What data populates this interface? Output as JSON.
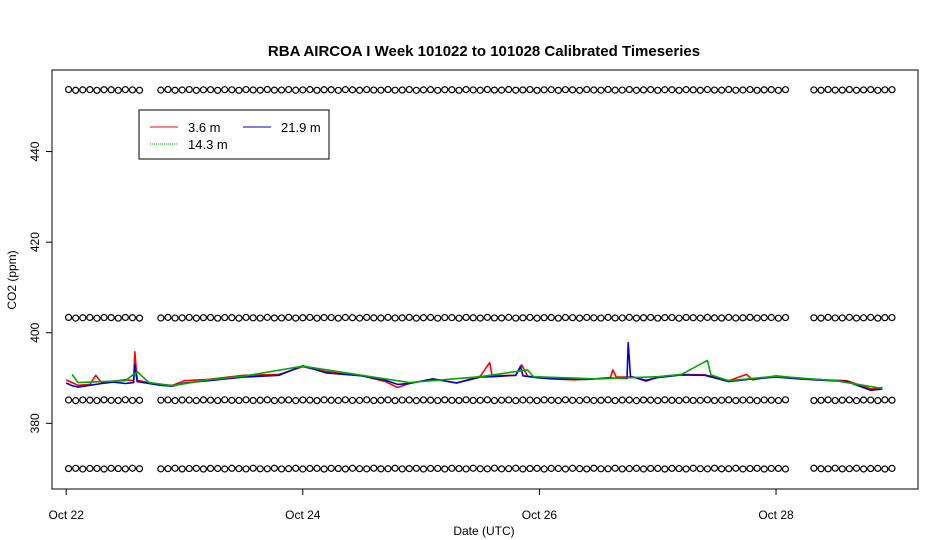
{
  "chart_data": {
    "type": "line",
    "title": "RBA AIRCOA I  Week 101022 to 101028  Calibrated Timeseries",
    "xlabel": "Date (UTC)",
    "ylabel": "CO2 (ppm)",
    "xlim": [
      -0.12,
      7.2
    ],
    "ylim": [
      365.5,
      458
    ],
    "x_ticks": [
      {
        "value": 0,
        "label": "Oct 22"
      },
      {
        "value": 2,
        "label": "Oct 24"
      },
      {
        "value": 4,
        "label": "Oct 26"
      },
      {
        "value": 6,
        "label": "Oct 28"
      }
    ],
    "y_ticks": [
      360,
      380,
      400,
      420,
      440
    ],
    "y_tick_labels": [
      "360",
      "380",
      "400",
      "420",
      "440"
    ],
    "legend": {
      "placement": "top-left",
      "entries": [
        {
          "label": "3.6 m",
          "color": "#ff0000"
        },
        {
          "label": "21.9 m",
          "color": "#0000cc"
        },
        {
          "label": "14.3 m",
          "color": "#00aa00"
        }
      ]
    },
    "series": [
      {
        "name": "3.6 m",
        "color": "#ff0000",
        "points": [
          [
            0.0,
            389.6
          ],
          [
            0.05,
            389.0
          ],
          [
            0.1,
            388.4
          ],
          [
            0.2,
            388.6
          ],
          [
            0.25,
            390.6
          ],
          [
            0.3,
            388.9
          ],
          [
            0.4,
            389.3
          ],
          [
            0.5,
            389.6
          ],
          [
            0.57,
            389.4
          ],
          [
            0.58,
            395.8
          ],
          [
            0.6,
            389.5
          ],
          [
            0.7,
            389.0
          ],
          [
            0.8,
            388.5
          ],
          [
            0.9,
            388.4
          ],
          [
            1.0,
            389.4
          ],
          [
            1.2,
            389.7
          ],
          [
            1.5,
            390.6
          ],
          [
            1.8,
            390.8
          ],
          [
            2.0,
            392.5
          ],
          [
            2.2,
            391.4
          ],
          [
            2.5,
            390.5
          ],
          [
            2.7,
            389.2
          ],
          [
            2.8,
            387.9
          ],
          [
            2.9,
            388.8
          ],
          [
            3.1,
            389.8
          ],
          [
            3.3,
            388.9
          ],
          [
            3.5,
            390.4
          ],
          [
            3.58,
            393.4
          ],
          [
            3.6,
            390.5
          ],
          [
            3.8,
            390.6
          ],
          [
            3.85,
            392.9
          ],
          [
            3.9,
            390.4
          ],
          [
            4.1,
            389.8
          ],
          [
            4.3,
            389.6
          ],
          [
            4.5,
            389.9
          ],
          [
            4.6,
            390.1
          ],
          [
            4.62,
            391.8
          ],
          [
            4.65,
            390.2
          ],
          [
            4.8,
            390.2
          ],
          [
            4.9,
            389.3
          ],
          [
            5.0,
            390.2
          ],
          [
            5.2,
            390.8
          ],
          [
            5.4,
            390.7
          ],
          [
            5.6,
            389.4
          ],
          [
            5.75,
            390.8
          ],
          [
            5.8,
            389.6
          ],
          [
            6.0,
            390.5
          ],
          [
            6.2,
            389.9
          ],
          [
            6.4,
            389.6
          ],
          [
            6.6,
            389.4
          ],
          [
            6.8,
            387.6
          ],
          [
            6.9,
            387.9
          ]
        ]
      },
      {
        "name": "21.9 m",
        "color": "#0000cc",
        "points": [
          [
            0.0,
            388.9
          ],
          [
            0.05,
            388.3
          ],
          [
            0.1,
            388.0
          ],
          [
            0.2,
            388.4
          ],
          [
            0.3,
            388.8
          ],
          [
            0.4,
            389.1
          ],
          [
            0.5,
            388.8
          ],
          [
            0.57,
            389.0
          ],
          [
            0.58,
            392.9
          ],
          [
            0.6,
            389.2
          ],
          [
            0.7,
            388.8
          ],
          [
            0.8,
            388.4
          ],
          [
            0.9,
            388.2
          ],
          [
            1.0,
            388.9
          ],
          [
            1.2,
            389.4
          ],
          [
            1.5,
            390.2
          ],
          [
            1.8,
            390.6
          ],
          [
            2.0,
            392.7
          ],
          [
            2.2,
            391.1
          ],
          [
            2.5,
            390.5
          ],
          [
            2.7,
            389.5
          ],
          [
            2.8,
            388.6
          ],
          [
            2.9,
            388.8
          ],
          [
            3.1,
            389.8
          ],
          [
            3.3,
            388.9
          ],
          [
            3.5,
            390.2
          ],
          [
            3.6,
            390.3
          ],
          [
            3.8,
            390.6
          ],
          [
            3.84,
            392.6
          ],
          [
            3.86,
            390.5
          ],
          [
            4.0,
            390.0
          ],
          [
            4.2,
            389.8
          ],
          [
            4.4,
            389.7
          ],
          [
            4.6,
            390.0
          ],
          [
            4.74,
            389.9
          ],
          [
            4.75,
            397.8
          ],
          [
            4.77,
            390.3
          ],
          [
            4.9,
            389.5
          ],
          [
            5.0,
            390.1
          ],
          [
            5.2,
            390.7
          ],
          [
            5.4,
            390.6
          ],
          [
            5.6,
            389.2
          ],
          [
            5.8,
            389.8
          ],
          [
            6.0,
            390.2
          ],
          [
            6.2,
            389.8
          ],
          [
            6.4,
            389.5
          ],
          [
            6.6,
            389.2
          ],
          [
            6.8,
            387.3
          ],
          [
            6.9,
            387.6
          ]
        ]
      },
      {
        "name": "14.3 m",
        "color": "#00aa00",
        "points": [
          [
            0.05,
            390.8
          ],
          [
            0.1,
            389.0
          ],
          [
            0.5,
            389.4
          ],
          [
            0.6,
            391.4
          ],
          [
            0.7,
            389.0
          ],
          [
            0.9,
            388.3
          ],
          [
            1.2,
            389.6
          ],
          [
            1.5,
            390.4
          ],
          [
            2.0,
            392.6
          ],
          [
            2.5,
            390.6
          ],
          [
            2.9,
            389.0
          ],
          [
            3.5,
            390.3
          ],
          [
            3.9,
            391.8
          ],
          [
            3.95,
            390.3
          ],
          [
            4.5,
            389.8
          ],
          [
            5.0,
            390.3
          ],
          [
            5.2,
            390.8
          ],
          [
            5.42,
            393.9
          ],
          [
            5.45,
            390.7
          ],
          [
            5.6,
            389.4
          ],
          [
            6.0,
            390.4
          ],
          [
            6.5,
            389.4
          ],
          [
            6.9,
            387.7
          ]
        ]
      },
      {
        "name": "",
        "marker": "circle",
        "color": "#000000",
        "points": "calibration reference points at approx. 370, 385, 403, 453.5 ppm"
      }
    ],
    "reference_levels": [
      370.0,
      385.1,
      403.3,
      453.6
    ],
    "reference_gaps": [
      [
        0.68,
        0.8
      ],
      [
        6.1,
        6.26
      ]
    ]
  }
}
